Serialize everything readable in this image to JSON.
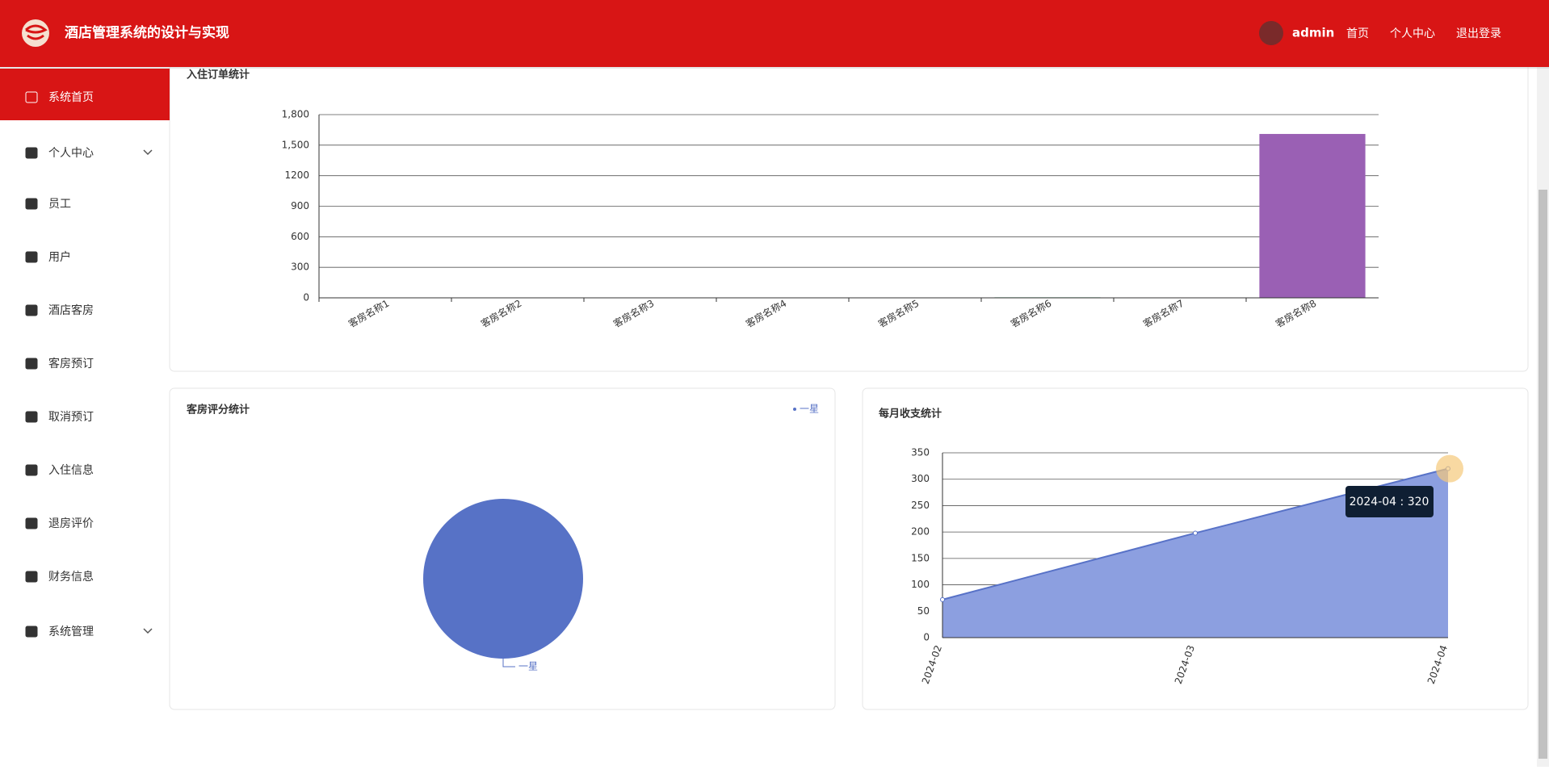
{
  "header": {
    "title": "酒店管理系统的设计与实现",
    "user": "admin",
    "nav": [
      "首页",
      "个人中心",
      "退出登录"
    ]
  },
  "sidebar": {
    "items": [
      "系统首页",
      "个人中心",
      "员工",
      "用户",
      "酒店客房",
      "客房预订",
      "取消预订",
      "入住信息",
      "退房评价",
      "财务信息",
      "系统管理"
    ],
    "active": 0
  },
  "chart_data": [
    {
      "type": "bar",
      "title": "入住订单统计",
      "categories": [
        "客房名称1",
        "客房名称2",
        "客房名称3",
        "客房名称4",
        "客房名称5",
        "客房名称6",
        "客房名称7",
        "客房名称8"
      ],
      "values": [
        1,
        1,
        2,
        3,
        2,
        5,
        4,
        1610
      ],
      "colors": [
        "#5470c6",
        "#91cc75",
        "#fac858",
        "#ee6666",
        "#73c0de",
        "#3ba272",
        "#fc8452",
        "#9a60b4"
      ],
      "ylim": [
        0,
        1800
      ],
      "yticks": [
        0,
        300,
        600,
        900,
        1200,
        {
          "value": 1500,
          "label": "1,500"
        },
        {
          "value": 1800,
          "label": "1,800"
        }
      ],
      "grid": true
    },
    {
      "type": "pie",
      "title": "客房评分统计",
      "categories": [
        "一星"
      ],
      "values": [
        1
      ],
      "colors": [
        "#5772c6"
      ],
      "legend": "top-right"
    },
    {
      "type": "line",
      "title": "每月收支统计",
      "x": [
        "2024-02",
        "2024-03",
        "2024-04"
      ],
      "values": [
        72,
        198,
        320
      ],
      "color": "#5872c7",
      "area_color": "#8c9fe0",
      "ylim": [
        0,
        350
      ],
      "yticks": [
        0,
        50,
        100,
        150,
        200,
        250,
        300,
        350
      ],
      "grid": true,
      "tooltip": "2024-04 : 320"
    }
  ]
}
